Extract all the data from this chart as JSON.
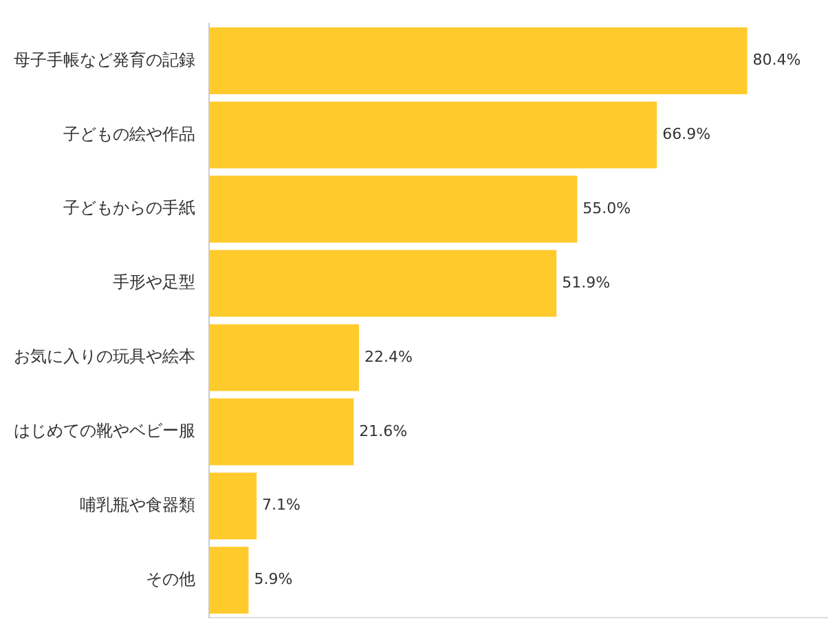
{
  "chart_data": {
    "type": "bar",
    "orientation": "horizontal",
    "categories": [
      "母子手帳など発育の記録",
      "子どもの絵や作品",
      "子どもからの手紙",
      "手形や足型",
      "お気に入りの玩具や絵本",
      "はじめての靴やベビー服",
      "哺乳瓶や食器類",
      "その他"
    ],
    "values": [
      80.4,
      66.9,
      55.0,
      51.9,
      22.4,
      21.6,
      7.1,
      5.9
    ],
    "value_labels": [
      "80.4%",
      "66.9%",
      "55.0%",
      "51.9%",
      "22.4%",
      "21.6%",
      "7.1%",
      "5.9%"
    ],
    "color": "#ffca2c",
    "relative": false,
    "grid": false,
    "legend": false
  }
}
